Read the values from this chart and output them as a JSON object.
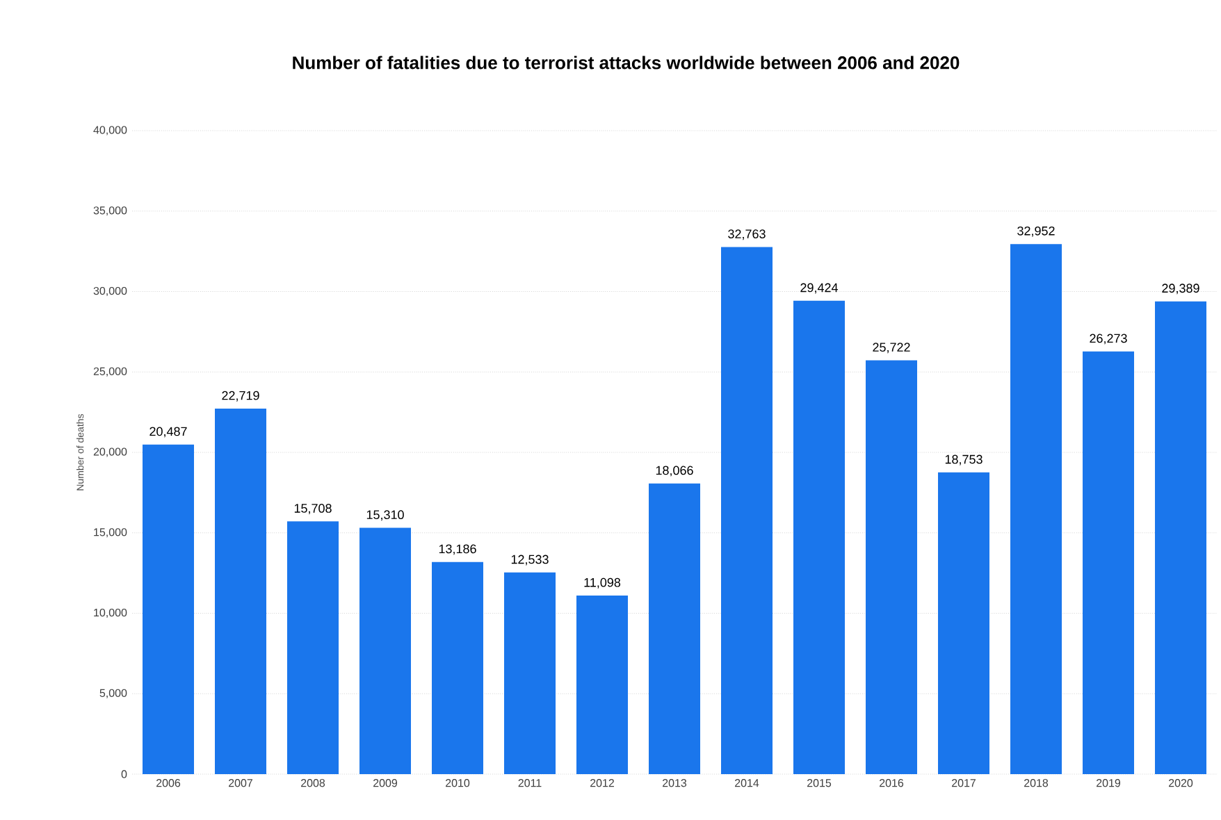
{
  "chart_data": {
    "type": "bar",
    "title": "Number of fatalities due to terrorist attacks worldwide between 2006 and 2020",
    "ylabel": "Number of deaths",
    "categories": [
      "2006",
      "2007",
      "2008",
      "2009",
      "2010",
      "2011",
      "2012",
      "2013",
      "2014",
      "2015",
      "2016",
      "2017",
      "2018",
      "2019",
      "2020"
    ],
    "values": [
      20487,
      22719,
      15708,
      15310,
      13186,
      12533,
      11098,
      18066,
      32763,
      29424,
      25722,
      18753,
      32952,
      26273,
      29389
    ],
    "value_labels": [
      "20,487",
      "22,719",
      "15,708",
      "15,310",
      "13,186",
      "12,533",
      "11,098",
      "18,066",
      "32,763",
      "29,424",
      "25,722",
      "18,753",
      "32,952",
      "26,273",
      "29,389"
    ],
    "color": "#1a76ec",
    "ylim": [
      0,
      40000
    ],
    "yticks": [
      0,
      {
        "value": 5000,
        "label": "5,000"
      },
      {
        "value": 10000,
        "label": "10,000"
      },
      {
        "value": 15000,
        "label": "15,000"
      },
      {
        "value": 20000,
        "label": "20,000"
      },
      {
        "value": 25000,
        "label": "25,000"
      },
      {
        "value": 30000,
        "label": "30,000"
      },
      {
        "value": 35000,
        "label": "35,000"
      },
      {
        "value": 40000,
        "label": "40,000"
      }
    ],
    "grid": "y"
  }
}
